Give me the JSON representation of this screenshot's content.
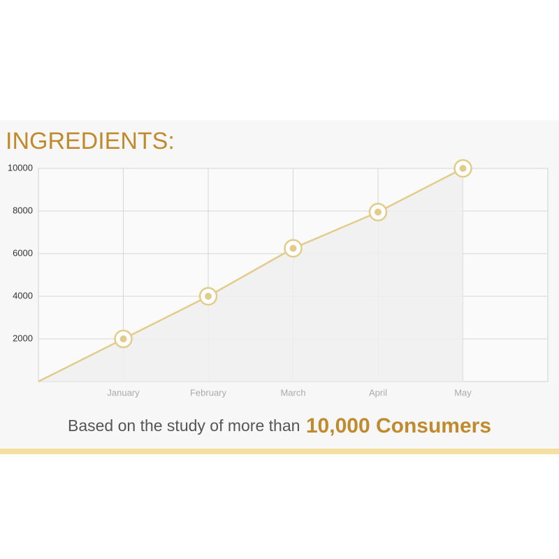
{
  "chart_data": {
    "type": "line",
    "title": "INGREDIENTS:",
    "categories": [
      null,
      "January",
      "February",
      "March",
      "April",
      "May"
    ],
    "series": [
      {
        "name": null,
        "color": "#e2cc8a",
        "values": [
          0,
          2000,
          4000,
          6250,
          7950,
          10000
        ]
      }
    ],
    "ylim": [
      0,
      10000
    ],
    "yticks": [
      2000,
      4000,
      6000,
      8000,
      10000
    ],
    "grid": true,
    "footer": {
      "text": "Based on the study of more than",
      "highlight": "10,000 Consumers"
    }
  }
}
